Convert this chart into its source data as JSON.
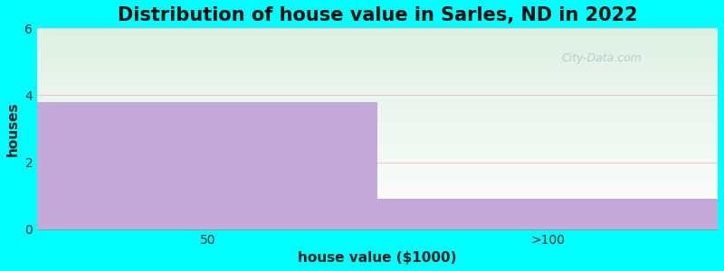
{
  "title": "Distribution of house value in Sarles, ND in 2022",
  "xlabel": "house value ($1000)",
  "ylabel": "houses",
  "categories": [
    "50",
    ">100"
  ],
  "values": [
    3.8,
    0.9
  ],
  "bar_color": "#c4aad8",
  "background_color": "#00ffff",
  "plot_bg_top_color": "#dff0e4",
  "plot_bg_bottom_color": "#ffffff",
  "ylim": [
    0,
    6
  ],
  "yticks": [
    0,
    2,
    4,
    6
  ],
  "grid_color": "#f0c8c8",
  "watermark": "City-Data.com",
  "title_fontsize": 15,
  "label_fontsize": 11
}
